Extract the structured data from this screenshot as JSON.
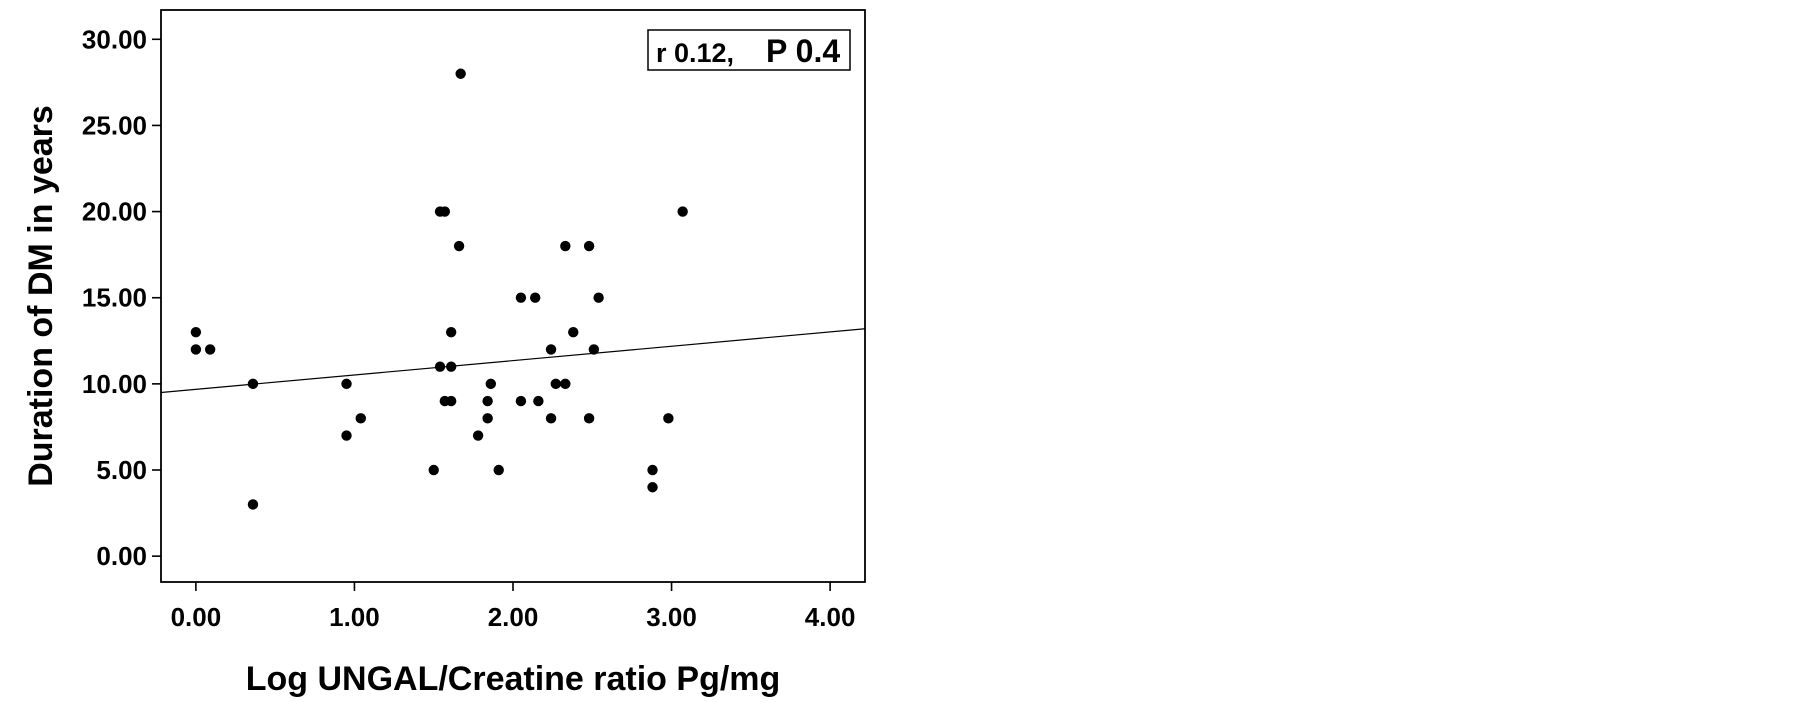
{
  "chart_data": {
    "type": "scatter",
    "title": "",
    "xlabel": "Log UNGAL/Creatine ratio Pg/mg",
    "ylabel": "Duration of DM in years",
    "xlim": [
      -0.22,
      4.22
    ],
    "ylim": [
      -1.5,
      31.7
    ],
    "x_ticks": [
      "0.00",
      "1.00",
      "2.00",
      "3.00",
      "4.00"
    ],
    "y_ticks": [
      "0.00",
      "5.00",
      "10.00",
      "15.00",
      "20.00",
      "25.00",
      "30.00"
    ],
    "grid": false,
    "annotation": {
      "r": "r 0.12,",
      "p": "P 0.4"
    },
    "fit_line": {
      "x": [
        -0.22,
        4.22
      ],
      "y": [
        9.5,
        13.2
      ]
    },
    "points": [
      {
        "x": 0.0,
        "y": 13
      },
      {
        "x": 0.0,
        "y": 12
      },
      {
        "x": 0.09,
        "y": 12
      },
      {
        "x": 0.36,
        "y": 10
      },
      {
        "x": 0.36,
        "y": 3
      },
      {
        "x": 0.95,
        "y": 10
      },
      {
        "x": 0.95,
        "y": 7
      },
      {
        "x": 1.04,
        "y": 8
      },
      {
        "x": 1.5,
        "y": 5
      },
      {
        "x": 1.54,
        "y": 20
      },
      {
        "x": 1.57,
        "y": 20
      },
      {
        "x": 1.54,
        "y": 11
      },
      {
        "x": 1.57,
        "y": 9
      },
      {
        "x": 1.61,
        "y": 13
      },
      {
        "x": 1.61,
        "y": 11
      },
      {
        "x": 1.61,
        "y": 9
      },
      {
        "x": 1.66,
        "y": 18
      },
      {
        "x": 1.67,
        "y": 28
      },
      {
        "x": 1.78,
        "y": 7
      },
      {
        "x": 1.84,
        "y": 9
      },
      {
        "x": 1.84,
        "y": 8
      },
      {
        "x": 1.86,
        "y": 10
      },
      {
        "x": 1.91,
        "y": 5
      },
      {
        "x": 2.05,
        "y": 15
      },
      {
        "x": 2.05,
        "y": 9
      },
      {
        "x": 2.14,
        "y": 15
      },
      {
        "x": 2.16,
        "y": 9
      },
      {
        "x": 2.24,
        "y": 12
      },
      {
        "x": 2.24,
        "y": 8
      },
      {
        "x": 2.27,
        "y": 10
      },
      {
        "x": 2.33,
        "y": 18
      },
      {
        "x": 2.33,
        "y": 10
      },
      {
        "x": 2.38,
        "y": 13
      },
      {
        "x": 2.48,
        "y": 18
      },
      {
        "x": 2.48,
        "y": 8
      },
      {
        "x": 2.51,
        "y": 12
      },
      {
        "x": 2.54,
        "y": 15
      },
      {
        "x": 2.88,
        "y": 5
      },
      {
        "x": 2.88,
        "y": 4
      },
      {
        "x": 2.98,
        "y": 8
      },
      {
        "x": 3.07,
        "y": 20
      }
    ]
  }
}
